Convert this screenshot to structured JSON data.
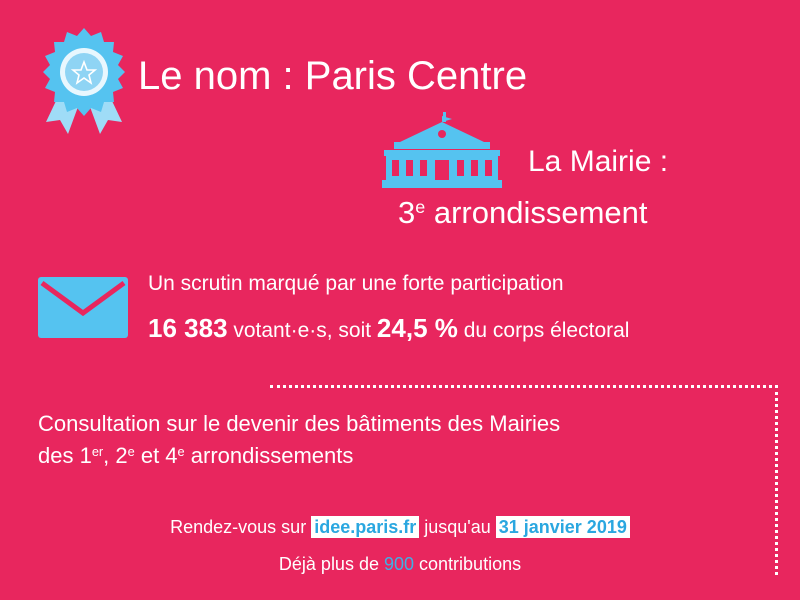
{
  "title": "Le nom : Paris Centre",
  "mairie": {
    "label": "La Mairie :",
    "arr_number": "3",
    "arr_sup": "e",
    "arr_text": " arrondissement"
  },
  "vote": {
    "line1": "Un scrutin marqué par une forte participation",
    "votants_number": "16 383",
    "votants_text": " votant·e·s, soit ",
    "percent": "24,5 %",
    "percent_text": " du corps électoral"
  },
  "consultation": {
    "line1": "Consultation sur le devenir des bâtiments des Mairies",
    "line2_a": "des 1",
    "sup1": "er",
    "line2_b": ", 2",
    "sup2": "e",
    "line2_c": " et 4",
    "sup3": "e",
    "line2_d": " arrondissements"
  },
  "rendezvous": {
    "prefix": "Rendez-vous sur ",
    "url": "idee.paris.fr",
    "middle": " jusqu'au ",
    "date": "31 janvier 2019"
  },
  "contributions": {
    "prefix": "Déjà plus de ",
    "count": "900",
    "suffix": " contributions"
  },
  "colors": {
    "background": "#e8265e",
    "icon_blue": "#55c3f0",
    "highlight_text": "#2aa7e0"
  },
  "icons": [
    "award-ribbon-icon",
    "town-hall-icon",
    "envelope-icon"
  ]
}
